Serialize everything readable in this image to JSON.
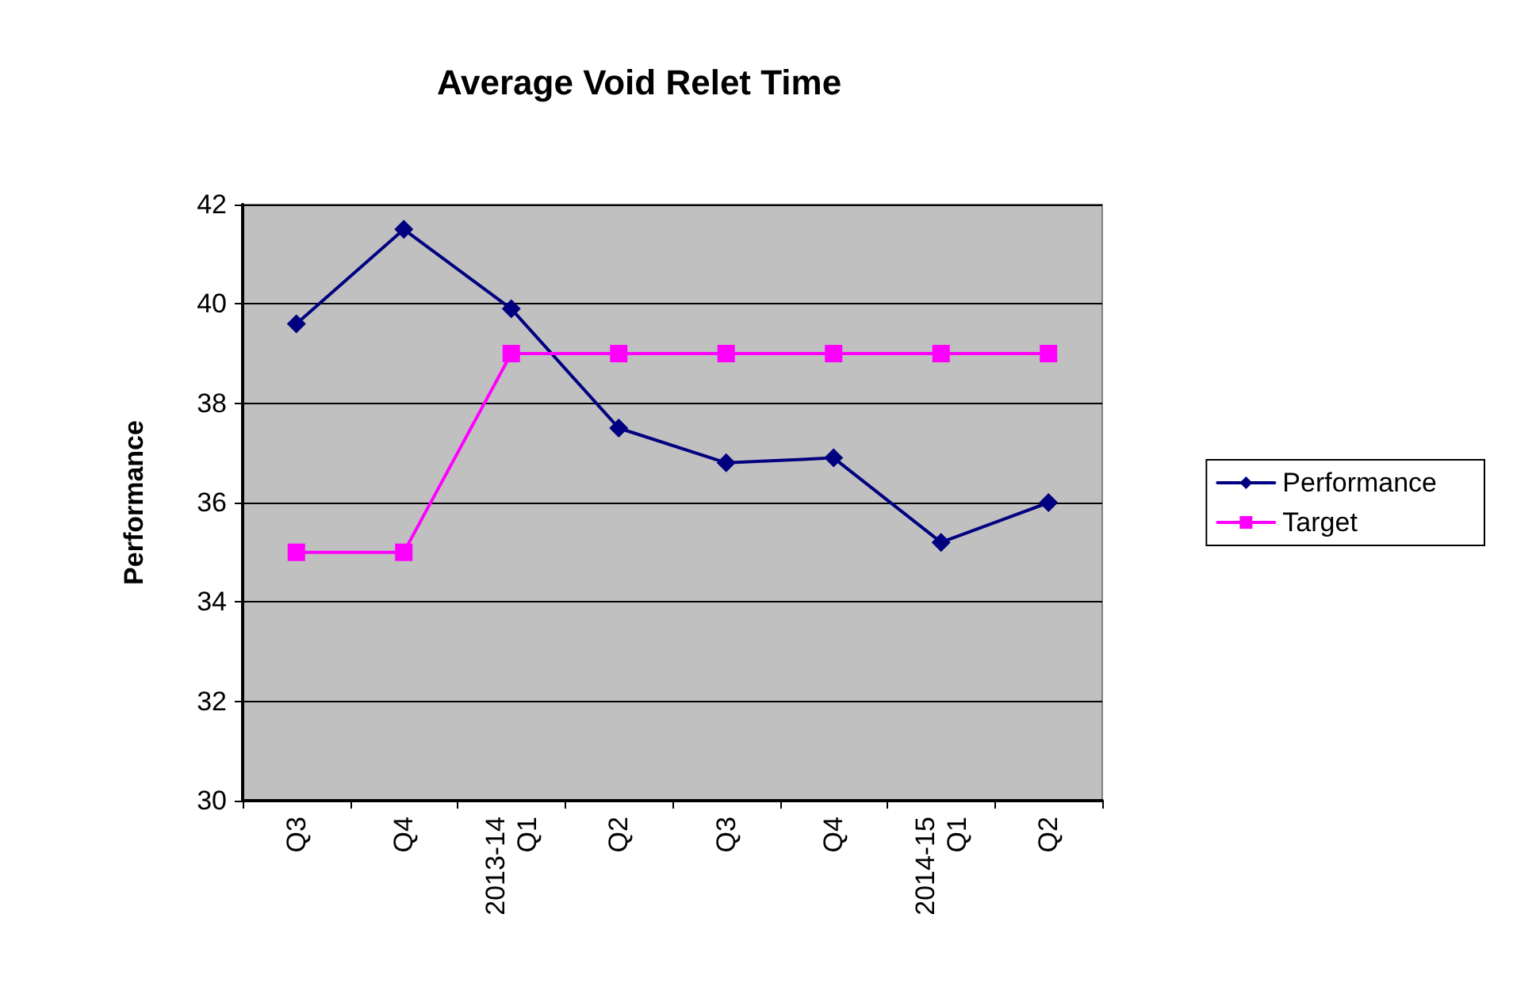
{
  "chart_data": {
    "type": "line",
    "title": "Average Void Relet Time",
    "ylabel": "Performance",
    "categories": [
      "Q3",
      "Q4",
      "2013-14\nQ1",
      "Q2",
      "Q3",
      "Q4",
      "2014-15\nQ1",
      "Q2"
    ],
    "series": [
      {
        "name": "Performance",
        "color": "#000080",
        "marker": "diamond",
        "values": [
          39.6,
          41.5,
          39.9,
          37.5,
          36.8,
          36.9,
          35.2,
          36.0
        ]
      },
      {
        "name": "Target",
        "color": "#ff00ff",
        "marker": "square",
        "values": [
          35,
          35,
          39,
          39,
          39,
          39,
          39,
          39
        ]
      }
    ],
    "ylim": [
      30,
      42
    ],
    "yticks": [
      30,
      32,
      34,
      36,
      38,
      40,
      42
    ],
    "grid": "y",
    "legend": "right",
    "line_style": "solid"
  }
}
